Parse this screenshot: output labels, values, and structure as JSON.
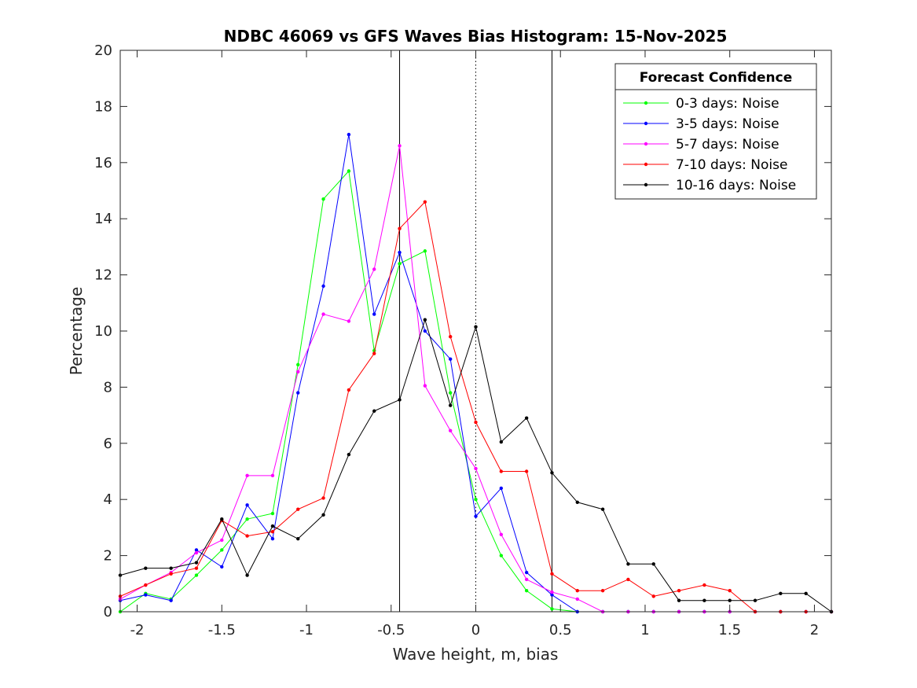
{
  "chart_data": {
    "type": "line",
    "title": "NDBC 46069 vs GFS Waves Bias Histogram: 15-Nov-2025",
    "xlabel": "Wave height, m, bias",
    "ylabel": "Percentage",
    "xlim": [
      -2.1,
      2.1
    ],
    "ylim": [
      0,
      20
    ],
    "x_ticks": [
      -2,
      -1.5,
      -1,
      -0.5,
      0,
      0.5,
      1,
      1.5,
      2
    ],
    "x_tick_labels": [
      "-2",
      "-1.5",
      "-1",
      "-0.5",
      "0",
      "0.5",
      "1",
      "1.5",
      "2"
    ],
    "y_ticks": [
      0,
      2,
      4,
      6,
      8,
      10,
      12,
      14,
      16,
      18,
      20
    ],
    "y_tick_labels": [
      "0",
      "2",
      "4",
      "6",
      "8",
      "10",
      "12",
      "14",
      "16",
      "18",
      "20"
    ],
    "vertical_lines": [
      {
        "x": -0.45,
        "style": "solid"
      },
      {
        "x": 0,
        "style": "dotted"
      },
      {
        "x": 0.45,
        "style": "solid"
      }
    ],
    "legend_title": "Forecast Confidence",
    "legend_position": "top-right",
    "x": [
      -2.1,
      -1.95,
      -1.8,
      -1.65,
      -1.5,
      -1.35,
      -1.2,
      -1.05,
      -0.9,
      -0.75,
      -0.6,
      -0.45,
      -0.3,
      -0.15,
      0,
      0.15,
      0.3,
      0.45,
      0.6,
      0.75,
      0.9,
      1.05,
      1.2,
      1.35,
      1.5,
      1.65,
      1.8,
      1.95,
      2.1
    ],
    "series": [
      {
        "name": "0-3 days: Noise",
        "color": "#00ff00",
        "values": [
          0,
          0.65,
          0.45,
          1.3,
          2.2,
          3.3,
          3.5,
          8.8,
          14.7,
          15.7,
          9.3,
          12.4,
          12.85,
          7.8,
          4.0,
          2.0,
          0.75,
          0.1,
          0,
          0,
          0,
          0,
          0,
          0,
          0,
          0,
          0,
          0,
          0
        ]
      },
      {
        "name": "3-5 days: Noise",
        "color": "#0000ff",
        "values": [
          0.4,
          0.6,
          0.4,
          2.2,
          1.6,
          3.8,
          2.6,
          7.8,
          11.6,
          17.0,
          10.6,
          12.8,
          10.0,
          9.0,
          3.4,
          4.4,
          1.4,
          0.6,
          0,
          0,
          0,
          0,
          0,
          0,
          0,
          0,
          0,
          0,
          0
        ]
      },
      {
        "name": "5-7 days: Noise",
        "color": "#ff00ff",
        "values": [
          0.45,
          0.95,
          1.4,
          2.1,
          2.55,
          4.85,
          4.85,
          8.55,
          10.6,
          10.35,
          12.2,
          16.6,
          8.05,
          6.45,
          5.1,
          2.75,
          1.15,
          0.7,
          0.45,
          0,
          0,
          0,
          0,
          0,
          0,
          0,
          0,
          0,
          0
        ]
      },
      {
        "name": "7-10 days: Noise",
        "color": "#ff0000",
        "values": [
          0.55,
          0.95,
          1.35,
          1.55,
          3.25,
          2.7,
          2.85,
          3.65,
          4.05,
          7.9,
          9.2,
          13.65,
          14.6,
          9.8,
          6.75,
          5.0,
          5.0,
          1.35,
          0.75,
          0.75,
          1.15,
          0.55,
          0.75,
          0.95,
          0.75,
          0,
          0,
          0,
          0
        ]
      },
      {
        "name": "10-16 days: Noise",
        "color": "#000000",
        "values": [
          1.3,
          1.55,
          1.55,
          1.75,
          3.3,
          1.3,
          3.05,
          2.6,
          3.45,
          5.6,
          7.15,
          7.55,
          10.4,
          7.35,
          10.15,
          6.05,
          6.9,
          4.95,
          3.9,
          3.65,
          1.7,
          1.7,
          0.4,
          0.4,
          0.4,
          0.4,
          0.65,
          0.65,
          0
        ]
      }
    ]
  }
}
